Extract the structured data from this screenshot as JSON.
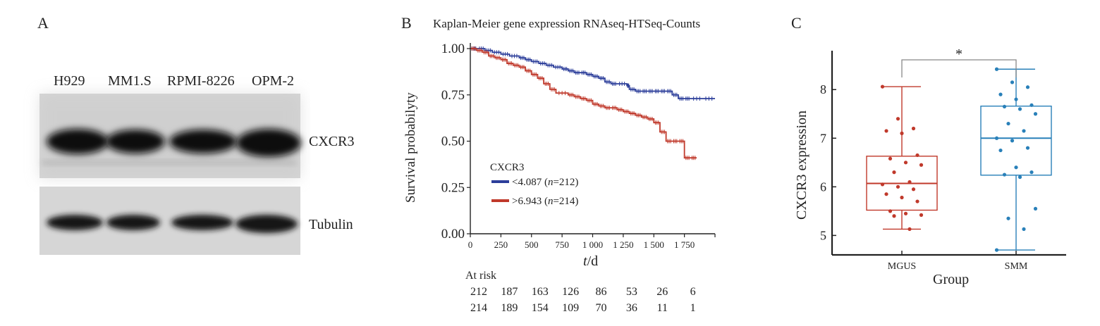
{
  "panels": {
    "a": {
      "label": "A",
      "lanes": [
        "H929",
        "MM1.S",
        "RPMI-8226",
        "OPM-2"
      ],
      "proteins": [
        "CXCR3",
        "Tubulin"
      ]
    },
    "b": {
      "label": "B",
      "chart_data": {
        "type": "line",
        "title": "Kaplan-Meier gene expression RNAseq-HTSeq-Counts",
        "xlabel_t": "t",
        "xlabel_rest": "/d",
        "ylabel": "Survival probabilyty",
        "xlim": [
          0,
          2000
        ],
        "ylim": [
          0,
          1
        ],
        "xticks": [
          0,
          250,
          500,
          750,
          1000,
          1250,
          1500,
          1750
        ],
        "xtick_labels": [
          "0",
          "250",
          "500",
          "750",
          "1 000",
          "1 250",
          "1 500",
          "1 750"
        ],
        "yticks": [
          0,
          0.25,
          0.5,
          0.75,
          1
        ],
        "ytick_labels": [
          "0.00",
          "0.25",
          "0.50",
          "0.75",
          "1.00"
        ],
        "legend_title": "CXCR3",
        "series": [
          {
            "name": "<4.087 (n=212)",
            "legend_prefix": "<4.087 (",
            "legend_n": "n",
            "legend_suffix": "=212)",
            "color": "#2c3e9a",
            "x": [
              0,
              60,
              120,
              180,
              250,
              320,
              400,
              450,
              500,
              560,
              620,
              680,
              750,
              800,
              850,
              900,
              950,
              1000,
              1050,
              1100,
              1150,
              1200,
              1280,
              1300,
              1350,
              1400,
              1450,
              1500,
              1550,
              1600,
              1650,
              1700,
              1750,
              1800,
              1900,
              2000
            ],
            "y": [
              1.0,
              1.0,
              0.99,
              0.98,
              0.97,
              0.96,
              0.95,
              0.94,
              0.93,
              0.92,
              0.91,
              0.9,
              0.89,
              0.88,
              0.87,
              0.87,
              0.86,
              0.85,
              0.84,
              0.82,
              0.81,
              0.81,
              0.8,
              0.78,
              0.77,
              0.77,
              0.77,
              0.77,
              0.77,
              0.77,
              0.75,
              0.73,
              0.73,
              0.73,
              0.73,
              0.73
            ]
          },
          {
            "name": ">6.943 (n=214)",
            "legend_prefix": ">6.943 (",
            "legend_n": "n",
            "legend_suffix": "=214)",
            "color": "#c0392b",
            "x": [
              0,
              50,
              100,
              150,
              200,
              250,
              300,
              350,
              400,
              450,
              500,
              550,
              600,
              650,
              700,
              800,
              850,
              900,
              950,
              1000,
              1050,
              1100,
              1150,
              1200,
              1250,
              1300,
              1350,
              1400,
              1450,
              1500,
              1550,
              1600,
              1650,
              1700,
              1750,
              1800,
              1850
            ],
            "y": [
              1.0,
              0.99,
              0.98,
              0.96,
              0.95,
              0.94,
              0.92,
              0.91,
              0.9,
              0.88,
              0.86,
              0.84,
              0.81,
              0.78,
              0.76,
              0.75,
              0.74,
              0.73,
              0.72,
              0.7,
              0.69,
              0.68,
              0.68,
              0.67,
              0.66,
              0.65,
              0.64,
              0.63,
              0.62,
              0.6,
              0.55,
              0.5,
              0.5,
              0.5,
              0.41,
              0.41,
              0.41
            ]
          }
        ],
        "at_risk": {
          "title": "At risk",
          "rows": [
            [
              212,
              187,
              163,
              126,
              86,
              53,
              26,
              6
            ],
            [
              214,
              189,
              154,
              109,
              70,
              36,
              11,
              1
            ]
          ]
        }
      }
    },
    "c": {
      "label": "C",
      "chart_data": {
        "type": "box",
        "xlabel": "Group",
        "ylabel": "CXCR3 expression",
        "ylim": [
          4.6,
          8.8
        ],
        "yticks": [
          5,
          6,
          7,
          8
        ],
        "significance": "*",
        "groups": [
          {
            "name": "MGUS",
            "color": "#c0392b",
            "whisker_low": 5.13,
            "q1": 5.52,
            "median": 6.07,
            "q3": 6.63,
            "whisker_high": 8.06,
            "points": [
              8.06,
              7.4,
              7.2,
              7.15,
              7.1,
              6.65,
              6.58,
              6.5,
              6.45,
              6.3,
              6.1,
              6.05,
              6.0,
              5.95,
              5.85,
              5.78,
              5.7,
              5.5,
              5.45,
              5.42,
              5.4,
              5.13
            ]
          },
          {
            "name": "SMM",
            "color": "#2980b9",
            "whisker_low": 4.7,
            "q1": 6.24,
            "median": 7.0,
            "q3": 7.66,
            "whisker_high": 8.42,
            "points": [
              8.42,
              8.15,
              8.05,
              7.9,
              7.8,
              7.68,
              7.65,
              7.6,
              7.5,
              7.3,
              7.15,
              7.0,
              6.95,
              6.8,
              6.75,
              6.4,
              6.3,
              6.25,
              6.2,
              5.55,
              5.35,
              5.13,
              4.7
            ]
          }
        ]
      }
    }
  }
}
